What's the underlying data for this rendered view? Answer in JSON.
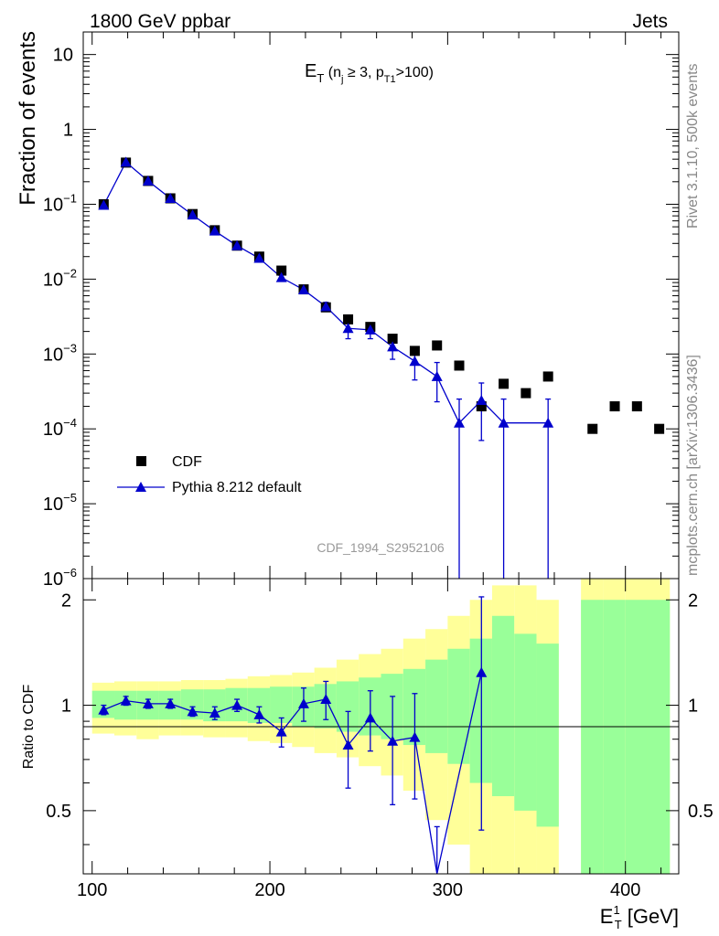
{
  "chart_data": {
    "type": "scatter",
    "header_left": "1800 GeV ppbar",
    "header_right": "Jets",
    "title": {
      "main": "E",
      "main_sub": "T",
      "open": " (n",
      "nj_sub": "j",
      "mid": " ≥ 3, p",
      "pt_sub": "T1",
      "close": ">100)"
    },
    "ylabel": "Fraction of events",
    "ratio_ylabel": "Ratio to CDF",
    "xlabel": {
      "main": "E",
      "sup": "1",
      "sub": "T",
      "unit": " [GeV]"
    },
    "side_label_top": "Rivet 3.1.10,  500k events",
    "side_label_bottom": "mcplots.cern.ch [arXiv:1306.3436]",
    "watermark": "CDF_1994_S2952106",
    "xlim": [
      95,
      430
    ],
    "ylim": [
      1e-06,
      20
    ],
    "ratio_ylim": [
      0.33,
      2.3
    ],
    "x_ticks": [
      "100",
      "200",
      "300",
      "400"
    ],
    "y_ticks": [
      {
        "value": 10,
        "base": "10",
        "exp": ""
      },
      {
        "value": 1,
        "base": "1",
        "exp": ""
      },
      {
        "value": 0.1,
        "base": "10",
        "exp": "−1"
      },
      {
        "value": 0.01,
        "base": "10",
        "exp": "−2"
      },
      {
        "value": 0.001,
        "base": "10",
        "exp": "−3"
      },
      {
        "value": 0.0001,
        "base": "10",
        "exp": "−4"
      },
      {
        "value": 1e-05,
        "base": "10",
        "exp": "−5"
      },
      {
        "value": 1e-06,
        "base": "10",
        "exp": "−6"
      }
    ],
    "ratio_ticks": [
      "0.5",
      "1",
      "2"
    ],
    "legend": [
      "CDF",
      "Pythia 8.212 default"
    ],
    "series": [
      {
        "name": "CDF",
        "marker": "square",
        "color": "#000000",
        "x": [
          106.5,
          119,
          131.5,
          144,
          156.5,
          169,
          181.5,
          194,
          206.5,
          219,
          231.5,
          244,
          256.5,
          269,
          281.5,
          294,
          306.5,
          319,
          331.5,
          344,
          356.5,
          381.5,
          394,
          406.5,
          419
        ],
        "y": [
          0.1,
          0.36,
          0.205,
          0.12,
          0.074,
          0.045,
          0.028,
          0.02,
          0.013,
          0.0073,
          0.0042,
          0.0029,
          0.0023,
          0.0016,
          0.0011,
          0.0013,
          0.0007,
          0.0002,
          0.0004,
          0.0003,
          0.0005,
          0.0001,
          0.0002,
          0.0002,
          0.0001
        ]
      },
      {
        "name": "Pythia 8.212 default",
        "marker": "triangle",
        "color": "#0000cc",
        "x": [
          106.5,
          119,
          131.5,
          144,
          156.5,
          169,
          181.5,
          194,
          206.5,
          219,
          231.5,
          244,
          256.5,
          269,
          281.5,
          294,
          306.5,
          319,
          331.5,
          356.5
        ],
        "y": [
          0.097,
          0.365,
          0.205,
          0.12,
          0.072,
          0.044,
          0.028,
          0.019,
          0.0105,
          0.0072,
          0.0043,
          0.0022,
          0.0021,
          0.00125,
          0.0008,
          0.0005,
          0.00012,
          0.00024,
          0.00012,
          0.00012
        ],
        "yerr_low": [
          0.003,
          0.008,
          0.005,
          0.003,
          0.002,
          0.0015,
          0.001,
          0.0008,
          0.001,
          0.0008,
          0.0006,
          0.0006,
          0.0005,
          0.0004,
          0.00035,
          0.00027,
          0.00012,
          0.00017,
          0.00012,
          0.00012
        ],
        "yerr_high": [
          0.003,
          0.008,
          0.005,
          0.003,
          0.002,
          0.0015,
          0.001,
          0.0008,
          0.001,
          0.0008,
          0.0006,
          0.0006,
          0.0005,
          0.0004,
          0.00035,
          0.00027,
          0.00013,
          0.00017,
          0.00013,
          0.00013
        ]
      }
    ],
    "ratio": {
      "x": [
        106.5,
        119,
        131.5,
        144,
        156.5,
        169,
        181.5,
        194,
        206.5,
        219,
        231.5,
        244,
        256.5,
        269,
        281.5,
        294,
        319
      ],
      "y": [
        0.97,
        1.03,
        1.01,
        1.01,
        0.96,
        0.95,
        1.0,
        0.94,
        0.84,
        1.01,
        1.04,
        0.77,
        0.92,
        0.79,
        0.81,
        0.3,
        1.24
      ],
      "err": [
        0.03,
        0.03,
        0.03,
        0.03,
        0.03,
        0.04,
        0.04,
        0.05,
        0.08,
        0.11,
        0.13,
        0.19,
        0.18,
        0.27,
        0.27,
        0.15,
        0.8
      ]
    },
    "uncertainty_bands": {
      "x_edges": [
        100,
        112.5,
        125,
        137.5,
        150,
        162.5,
        175,
        187.5,
        200,
        212.5,
        225,
        237.5,
        250,
        262.5,
        275,
        287.5,
        300,
        312.5,
        325,
        337.5,
        350,
        362.5,
        375,
        387.5,
        400,
        412.5,
        425
      ],
      "green_lo": [
        0.92,
        0.91,
        0.91,
        0.91,
        0.91,
        0.9,
        0.9,
        0.89,
        0.89,
        0.87,
        0.86,
        0.84,
        0.82,
        0.8,
        0.77,
        0.73,
        0.68,
        0.6,
        0.55,
        0.5,
        0.45,
        null,
        0.33,
        0.33,
        0.33,
        0.33
      ],
      "green_hi": [
        1.1,
        1.1,
        1.1,
        1.1,
        1.11,
        1.11,
        1.12,
        1.12,
        1.13,
        1.13,
        1.15,
        1.17,
        1.2,
        1.23,
        1.27,
        1.35,
        1.45,
        1.55,
        1.8,
        1.6,
        1.5,
        null,
        2.0,
        2.0,
        2.0,
        2.0
      ],
      "yellow_lo": [
        0.83,
        0.82,
        0.8,
        0.82,
        0.82,
        0.81,
        0.81,
        0.79,
        0.78,
        0.76,
        0.73,
        0.71,
        0.67,
        0.63,
        0.57,
        0.47,
        0.4,
        0.33,
        0.33,
        0.33,
        0.33,
        null,
        0.33,
        0.33,
        0.33,
        0.33
      ],
      "yellow_hi": [
        1.16,
        1.17,
        1.17,
        1.17,
        1.18,
        1.18,
        1.19,
        1.21,
        1.22,
        1.24,
        1.28,
        1.35,
        1.4,
        1.45,
        1.55,
        1.65,
        1.8,
        2.0,
        2.2,
        2.2,
        2.0,
        null,
        2.3,
        2.3,
        2.3,
        2.3
      ]
    }
  }
}
